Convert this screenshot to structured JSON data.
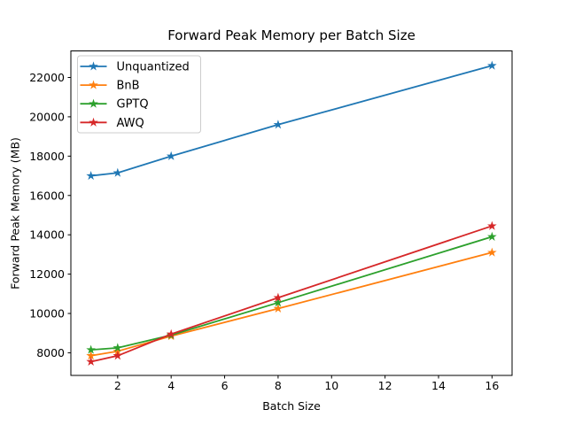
{
  "chart_data": {
    "type": "line",
    "title": "Forward Peak Memory per Batch Size",
    "xlabel": "Batch Size",
    "ylabel": "Forward Peak Memory (MB)",
    "x": [
      1,
      2,
      4,
      8,
      16
    ],
    "series": [
      {
        "name": "Unquantized",
        "color": "#1f77b4",
        "marker": "star",
        "values": [
          17000,
          17150,
          18000,
          19600,
          22600
        ]
      },
      {
        "name": "BnB",
        "color": "#ff7f0e",
        "marker": "star",
        "values": [
          7850,
          8080,
          8850,
          10250,
          13100
        ]
      },
      {
        "name": "GPTQ",
        "color": "#2ca02c",
        "marker": "star",
        "values": [
          8150,
          8250,
          8900,
          10550,
          13900
        ]
      },
      {
        "name": "AWQ",
        "color": "#d62728",
        "marker": "star",
        "values": [
          7550,
          7850,
          8950,
          10800,
          14450
        ]
      }
    ],
    "xticks": [
      2,
      4,
      6,
      8,
      10,
      12,
      14,
      16
    ],
    "yticks": [
      8000,
      10000,
      12000,
      14000,
      16000,
      18000,
      20000,
      22000
    ],
    "xlim": [
      0.25,
      16.75
    ],
    "ylim": [
      6850,
      23350
    ],
    "grid": false,
    "legend_position": "upper left",
    "colors": {
      "spine": "#000000",
      "background": "#ffffff",
      "legend_border": "#cccccc",
      "legend_background": "#ffffff"
    }
  }
}
